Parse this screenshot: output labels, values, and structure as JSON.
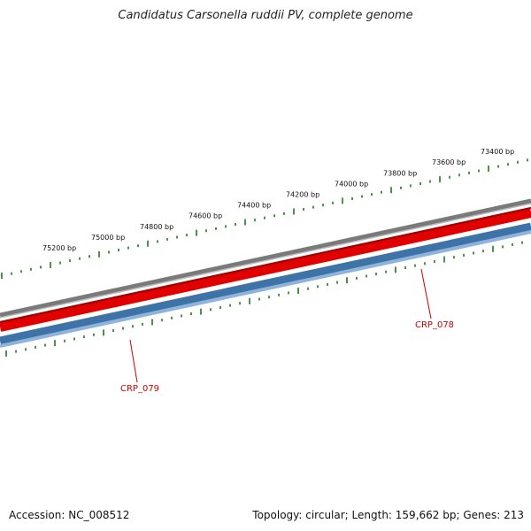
{
  "title": "Candidatus Carsonella ruddii PV, complete genome",
  "footer": {
    "accession": "Accession: NC_008512",
    "summary": "Topology: circular; Length: 159,662 bp; Genes: 213"
  },
  "scale_labels": [
    "75200 bp",
    "75000 bp",
    "74800 bp",
    "74600 bp",
    "74400 bp",
    "74200 bp",
    "74000 bp",
    "73800 bp",
    "73600 bp",
    "73400 bp"
  ],
  "genes": [
    {
      "label": "CRP_078",
      "strand": "minus"
    },
    {
      "label": "CRP_079",
      "strand": "minus"
    }
  ],
  "colors": {
    "backbone": "#888888",
    "plus_strand": "#e00000",
    "minus_strand": "#3e73a8",
    "minus_strand_light": "#7fa6d0",
    "ticks": "#1a7a1a",
    "gene_label": "#cc0000"
  }
}
